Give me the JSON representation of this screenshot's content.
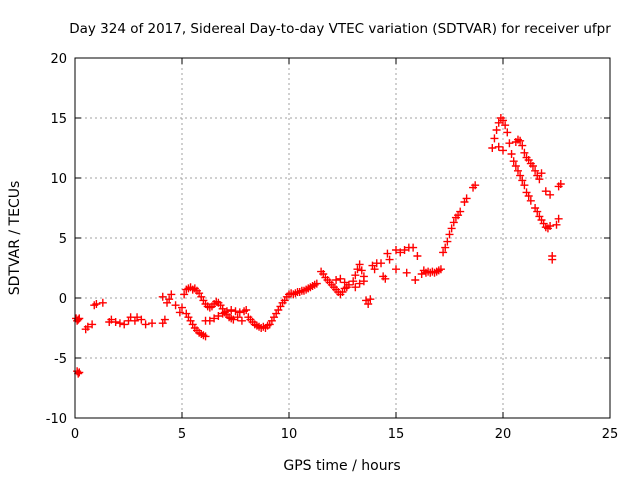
{
  "chart_data": {
    "type": "scatter",
    "title": "Day 324 of 2017, Sidereal Day-to-day VTEC variation (SDTVAR) for receiver ufpr",
    "xlabel": "GPS time / hours",
    "ylabel": "SDTVAR / TECUs",
    "xlim": [
      0,
      25
    ],
    "ylim": [
      -10,
      20
    ],
    "xticks": [
      0,
      5,
      10,
      15,
      20,
      25
    ],
    "yticks": [
      -10,
      -5,
      0,
      5,
      10,
      15,
      20
    ],
    "xtick_labels": [
      "0",
      "5",
      "10",
      "15",
      "20",
      "25"
    ],
    "ytick_labels": [
      "-10",
      "-5",
      "0",
      "5",
      "10",
      "15",
      "20"
    ],
    "grid": true,
    "marker": "+",
    "color": "#ff0000",
    "series": [
      {
        "name": "SDTVAR",
        "points": [
          [
            0.05,
            -1.7
          ],
          [
            0.1,
            -1.9
          ],
          [
            0.15,
            -1.8
          ],
          [
            0.2,
            -1.7
          ],
          [
            0.1,
            -6.1
          ],
          [
            0.15,
            -6.3
          ],
          [
            0.2,
            -6.2
          ],
          [
            0.5,
            -2.6
          ],
          [
            0.6,
            -2.4
          ],
          [
            0.8,
            -2.2
          ],
          [
            0.9,
            -0.6
          ],
          [
            1.0,
            -0.5
          ],
          [
            1.3,
            -0.4
          ],
          [
            1.6,
            -2.0
          ],
          [
            1.7,
            -1.8
          ],
          [
            1.9,
            -2.0
          ],
          [
            2.1,
            -2.1
          ],
          [
            2.3,
            -2.2
          ],
          [
            2.5,
            -1.9
          ],
          [
            2.6,
            -1.6
          ],
          [
            2.8,
            -1.9
          ],
          [
            2.9,
            -1.6
          ],
          [
            3.1,
            -1.8
          ],
          [
            3.3,
            -2.2
          ],
          [
            3.6,
            -2.1
          ],
          [
            4.1,
            -2.1
          ],
          [
            4.2,
            -1.8
          ],
          [
            4.1,
            0.1
          ],
          [
            4.3,
            -0.4
          ],
          [
            4.4,
            -0.1
          ],
          [
            4.5,
            0.3
          ],
          [
            4.7,
            -0.6
          ],
          [
            4.9,
            -1.2
          ],
          [
            5.0,
            -0.8
          ],
          [
            5.2,
            -1.3
          ],
          [
            5.3,
            -1.6
          ],
          [
            5.4,
            -1.9
          ],
          [
            5.5,
            -2.2
          ],
          [
            5.6,
            -2.5
          ],
          [
            5.7,
            -2.7
          ],
          [
            5.8,
            -2.9
          ],
          [
            5.9,
            -3.0
          ],
          [
            6.0,
            -3.1
          ],
          [
            6.1,
            -3.2
          ],
          [
            5.1,
            0.3
          ],
          [
            5.2,
            0.7
          ],
          [
            5.3,
            0.8
          ],
          [
            5.4,
            0.9
          ],
          [
            5.5,
            0.7
          ],
          [
            5.6,
            0.8
          ],
          [
            5.7,
            0.6
          ],
          [
            5.8,
            0.4
          ],
          [
            5.9,
            0.1
          ],
          [
            6.0,
            -0.2
          ],
          [
            6.1,
            -0.5
          ],
          [
            6.2,
            -0.7
          ],
          [
            6.3,
            -0.8
          ],
          [
            6.4,
            -0.7
          ],
          [
            6.5,
            -0.5
          ],
          [
            6.6,
            -0.3
          ],
          [
            6.7,
            -0.4
          ],
          [
            6.8,
            -0.6
          ],
          [
            6.9,
            -0.9
          ],
          [
            7.0,
            -1.2
          ],
          [
            7.1,
            -1.4
          ],
          [
            7.2,
            -1.6
          ],
          [
            7.3,
            -1.7
          ],
          [
            6.1,
            -1.9
          ],
          [
            6.3,
            -1.9
          ],
          [
            6.5,
            -1.7
          ],
          [
            6.7,
            -1.5
          ],
          [
            6.9,
            -1.3
          ],
          [
            7.1,
            -1.1
          ],
          [
            7.3,
            -1.0
          ],
          [
            7.5,
            -1.1
          ],
          [
            7.7,
            -1.2
          ],
          [
            7.9,
            -1.1
          ],
          [
            8.0,
            -1.0
          ],
          [
            7.6,
            -1.6
          ],
          [
            7.8,
            -1.9
          ],
          [
            7.4,
            -1.8
          ],
          [
            8.1,
            -1.6
          ],
          [
            8.2,
            -1.8
          ],
          [
            8.3,
            -2.0
          ],
          [
            8.4,
            -2.2
          ],
          [
            8.5,
            -2.3
          ],
          [
            8.6,
            -2.4
          ],
          [
            8.7,
            -2.5
          ],
          [
            8.8,
            -2.4
          ],
          [
            8.9,
            -2.5
          ],
          [
            9.0,
            -2.3
          ],
          [
            9.1,
            -2.2
          ],
          [
            9.2,
            -1.9
          ],
          [
            9.3,
            -1.6
          ],
          [
            9.4,
            -1.3
          ],
          [
            9.5,
            -1.0
          ],
          [
            9.6,
            -0.7
          ],
          [
            9.7,
            -0.4
          ],
          [
            9.8,
            -0.2
          ],
          [
            9.9,
            0.1
          ],
          [
            10.0,
            0.3
          ],
          [
            10.1,
            0.4
          ],
          [
            10.2,
            0.3
          ],
          [
            10.3,
            0.4
          ],
          [
            10.4,
            0.5
          ],
          [
            10.5,
            0.5
          ],
          [
            10.6,
            0.6
          ],
          [
            10.7,
            0.6
          ],
          [
            10.8,
            0.7
          ],
          [
            10.9,
            0.8
          ],
          [
            11.0,
            0.9
          ],
          [
            11.1,
            1.0
          ],
          [
            11.2,
            1.1
          ],
          [
            11.3,
            1.2
          ],
          [
            11.5,
            2.2
          ],
          [
            11.6,
            2.0
          ],
          [
            11.7,
            1.7
          ],
          [
            11.8,
            1.5
          ],
          [
            11.9,
            1.3
          ],
          [
            12.0,
            1.1
          ],
          [
            12.1,
            0.9
          ],
          [
            12.2,
            0.7
          ],
          [
            12.3,
            0.5
          ],
          [
            12.4,
            0.3
          ],
          [
            12.5,
            0.5
          ],
          [
            12.6,
            0.8
          ],
          [
            12.7,
            0.9
          ],
          [
            12.2,
            1.5
          ],
          [
            12.4,
            1.6
          ],
          [
            12.6,
            1.3
          ],
          [
            12.8,
            1.1
          ],
          [
            13.0,
            1.4
          ],
          [
            13.1,
            1.9
          ],
          [
            13.2,
            2.4
          ],
          [
            13.3,
            2.8
          ],
          [
            13.4,
            2.3
          ],
          [
            13.5,
            1.8
          ],
          [
            13.1,
            0.9
          ],
          [
            13.3,
            1.2
          ],
          [
            13.5,
            1.4
          ],
          [
            13.6,
            -0.2
          ],
          [
            13.7,
            -0.5
          ],
          [
            13.8,
            -0.1
          ],
          [
            13.9,
            2.7
          ],
          [
            14.0,
            2.4
          ],
          [
            14.1,
            2.9
          ],
          [
            14.3,
            2.9
          ],
          [
            14.4,
            1.8
          ],
          [
            14.5,
            1.6
          ],
          [
            14.6,
            3.7
          ],
          [
            14.7,
            3.2
          ],
          [
            15.0,
            2.4
          ],
          [
            15.0,
            4.0
          ],
          [
            15.2,
            3.8
          ],
          [
            15.4,
            4.0
          ],
          [
            15.6,
            4.2
          ],
          [
            15.5,
            2.1
          ],
          [
            15.8,
            4.2
          ],
          [
            15.9,
            1.5
          ],
          [
            16.0,
            3.5
          ],
          [
            16.2,
            2.0
          ],
          [
            16.3,
            2.3
          ],
          [
            16.4,
            2.1
          ],
          [
            16.5,
            2.2
          ],
          [
            16.6,
            2.1
          ],
          [
            16.7,
            2.2
          ],
          [
            16.8,
            2.1
          ],
          [
            16.9,
            2.2
          ],
          [
            17.0,
            2.3
          ],
          [
            17.1,
            2.4
          ],
          [
            17.2,
            3.8
          ],
          [
            17.3,
            4.2
          ],
          [
            17.4,
            4.7
          ],
          [
            17.5,
            5.3
          ],
          [
            17.6,
            5.8
          ],
          [
            17.7,
            6.3
          ],
          [
            17.8,
            6.7
          ],
          [
            17.9,
            6.9
          ],
          [
            18.0,
            7.2
          ],
          [
            18.2,
            8.0
          ],
          [
            18.3,
            8.3
          ],
          [
            18.6,
            9.2
          ],
          [
            18.7,
            9.4
          ],
          [
            19.5,
            12.5
          ],
          [
            19.6,
            13.3
          ],
          [
            19.7,
            14.0
          ],
          [
            19.8,
            14.6
          ],
          [
            19.9,
            15.0
          ],
          [
            20.0,
            14.8
          ],
          [
            20.1,
            14.4
          ],
          [
            20.0,
            12.3
          ],
          [
            19.8,
            12.6
          ],
          [
            20.2,
            13.8
          ],
          [
            20.3,
            12.9
          ],
          [
            20.4,
            12.0
          ],
          [
            20.5,
            11.4
          ],
          [
            20.6,
            11.0
          ],
          [
            20.7,
            10.6
          ],
          [
            20.8,
            10.2
          ],
          [
            20.9,
            9.8
          ],
          [
            21.0,
            9.4
          ],
          [
            21.1,
            8.8
          ],
          [
            21.2,
            8.5
          ],
          [
            21.3,
            8.1
          ],
          [
            20.6,
            13.0
          ],
          [
            20.7,
            13.2
          ],
          [
            20.8,
            13.1
          ],
          [
            20.9,
            12.7
          ],
          [
            21.0,
            12.1
          ],
          [
            21.1,
            11.7
          ],
          [
            21.2,
            11.5
          ],
          [
            21.3,
            11.2
          ],
          [
            21.4,
            11.0
          ],
          [
            21.5,
            10.6
          ],
          [
            21.6,
            10.2
          ],
          [
            21.7,
            9.9
          ],
          [
            21.8,
            10.4
          ],
          [
            21.5,
            7.5
          ],
          [
            21.6,
            7.2
          ],
          [
            21.7,
            6.8
          ],
          [
            21.8,
            6.5
          ],
          [
            21.9,
            6.2
          ],
          [
            22.0,
            5.9
          ],
          [
            22.1,
            5.8
          ],
          [
            22.2,
            6.0
          ],
          [
            22.0,
            8.9
          ],
          [
            22.2,
            8.6
          ],
          [
            22.3,
            3.5
          ],
          [
            22.3,
            3.2
          ],
          [
            22.5,
            6.1
          ],
          [
            22.6,
            6.6
          ],
          [
            22.6,
            9.3
          ],
          [
            22.7,
            9.5
          ]
        ]
      }
    ]
  }
}
